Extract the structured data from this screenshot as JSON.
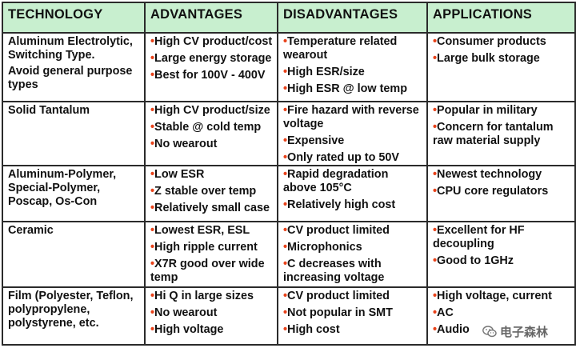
{
  "headers": [
    "TECHNOLOGY",
    "ADVANTAGES",
    "DISADVANTAGES",
    "APPLICATIONS"
  ],
  "rows": [
    {
      "technology": [
        "Aluminum Electrolytic, Switching Type.",
        "Avoid general purpose types"
      ],
      "advantages": [
        "High CV product/cost",
        "Large energy storage",
        "Best for 100V - 400V"
      ],
      "disadvantages": [
        "Temperature related wearout",
        "High ESR/size",
        "High ESR @ low temp"
      ],
      "applications": [
        "Consumer products",
        "Large bulk storage"
      ]
    },
    {
      "technology": [
        "Solid Tantalum"
      ],
      "advantages": [
        "High CV product/size",
        "Stable @ cold temp",
        "No wearout"
      ],
      "disadvantages": [
        "Fire hazard with reverse voltage",
        "Expensive",
        "Only rated up to 50V"
      ],
      "applications": [
        "Popular in military",
        "Concern for tantalum raw material supply"
      ]
    },
    {
      "technology": [
        "Aluminum-Polymer, Special-Polymer, Poscap, Os-Con"
      ],
      "advantages": [
        "Low ESR",
        "Z stable over temp",
        "Relatively small case"
      ],
      "disadvantages": [
        "Rapid degradation above 105°C",
        "Relatively high cost"
      ],
      "applications": [
        "Newest technology",
        "CPU core regulators"
      ]
    },
    {
      "technology": [
        "Ceramic"
      ],
      "advantages": [
        "Lowest ESR, ESL",
        "High ripple current",
        "X7R good over wide temp"
      ],
      "disadvantages": [
        "CV product limited",
        "Microphonics",
        "C decreases with increasing voltage"
      ],
      "applications": [
        "Excellent for HF decoupling",
        "Good to 1GHz"
      ]
    },
    {
      "technology": [
        "Film (Polyester, Teflon, polypropylene, polystyrene, etc."
      ],
      "advantages": [
        "Hi Q in large sizes",
        "No wearout",
        "High voltage"
      ],
      "disadvantages": [
        "CV product limited",
        "Not popular in SMT",
        "High cost"
      ],
      "applications": [
        "High voltage, current",
        "AC",
        "Audio"
      ]
    }
  ],
  "bullet_char": "•",
  "colors": {
    "header_bg": "#c8efcf",
    "bullet": "#e8421a",
    "border": "#2b2b2b"
  },
  "watermark": {
    "text": "电子森林",
    "icon": "wechat-icon"
  }
}
